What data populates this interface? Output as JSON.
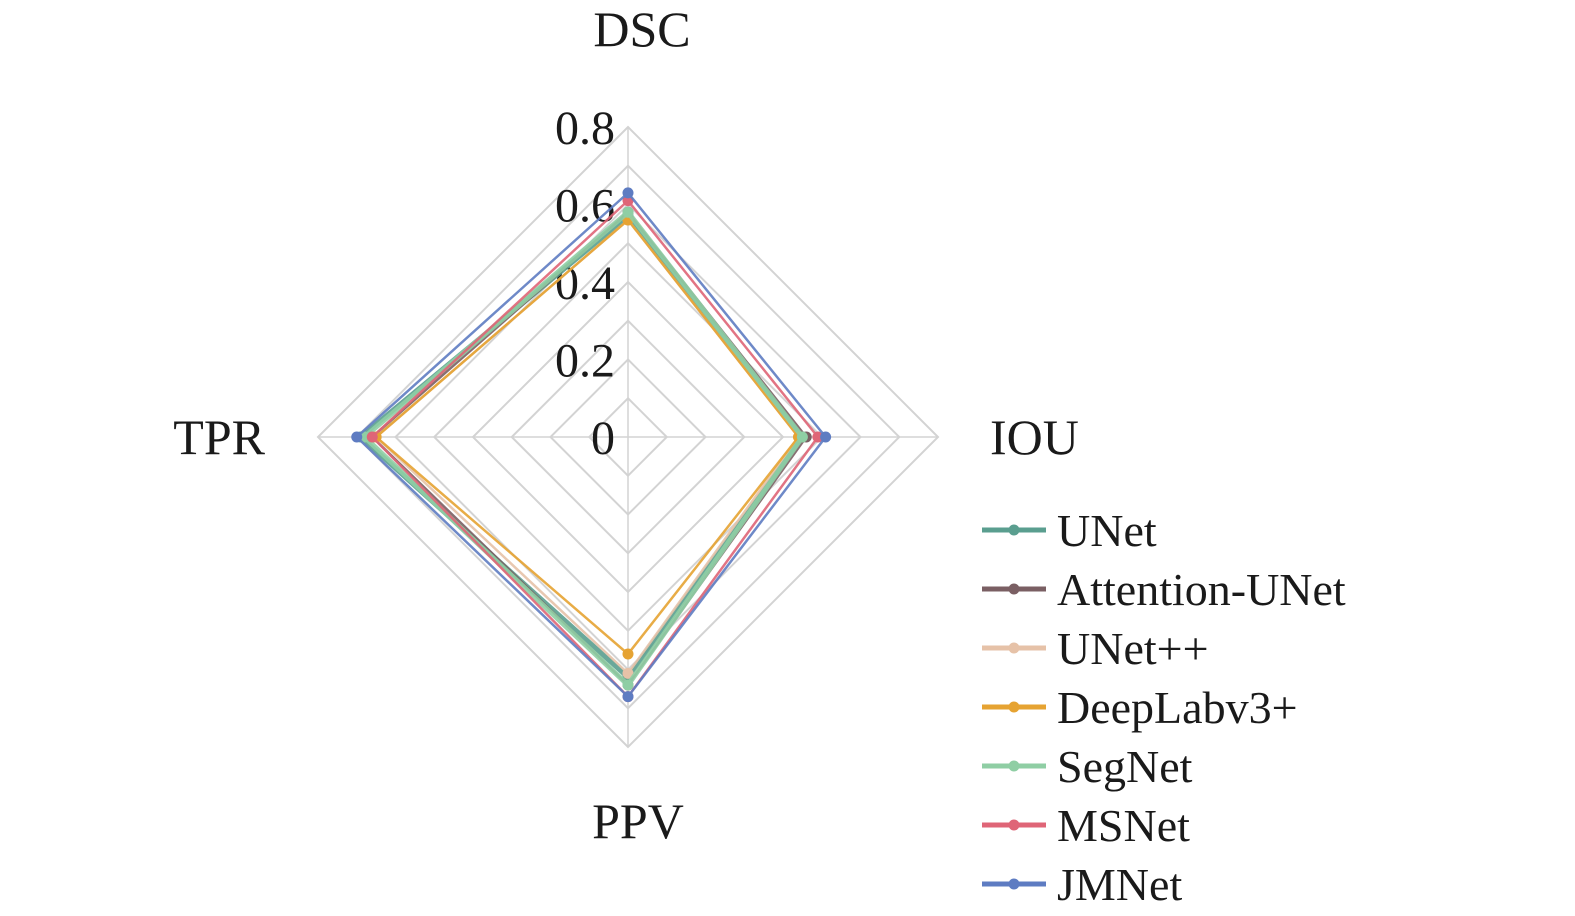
{
  "chart_data": {
    "type": "radar",
    "axes": [
      "DSC",
      "IOU",
      "PPV",
      "TPR"
    ],
    "r_ticks": [
      0,
      0.2,
      0.4,
      0.6,
      0.8
    ],
    "r_tick_labels": [
      "0",
      "0.2",
      "0.4",
      "0.6",
      "0.8"
    ],
    "rlim": [
      0,
      0.8
    ],
    "grid": true,
    "legend_position": "bottom-right",
    "series": [
      {
        "name": "UNet",
        "values": [
          0.57,
          0.45,
          0.62,
          0.69
        ],
        "color": "#5a9e8f"
      },
      {
        "name": "Attention-UNet",
        "values": [
          0.58,
          0.46,
          0.64,
          0.66
        ],
        "color": "#7a5f63"
      },
      {
        "name": "UNet++",
        "values": [
          0.56,
          0.44,
          0.61,
          0.65
        ],
        "color": "#e6c2a8"
      },
      {
        "name": "DeepLabv3+",
        "values": [
          0.56,
          0.44,
          0.56,
          0.65
        ],
        "color": "#e6a332"
      },
      {
        "name": "SegNet",
        "values": [
          0.58,
          0.45,
          0.64,
          0.68
        ],
        "color": "#8fcea4"
      },
      {
        "name": "MSNet",
        "values": [
          0.61,
          0.49,
          0.67,
          0.66
        ],
        "color": "#df6577"
      },
      {
        "name": "JMNet",
        "values": [
          0.63,
          0.51,
          0.67,
          0.7
        ],
        "color": "#5e7cc2"
      }
    ]
  }
}
